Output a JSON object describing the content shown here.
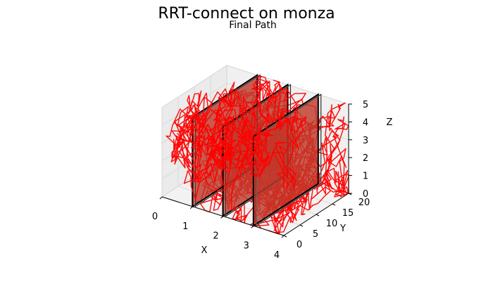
{
  "chart_data": {
    "type": "3d-line",
    "title": "RRT-connect on monza",
    "subtitle": "Final Path",
    "xlabel": "X",
    "ylabel": "Y",
    "zlabel": "Z",
    "xlim": [
      0,
      4
    ],
    "ylim": [
      0,
      20
    ],
    "zlim": [
      0,
      5
    ],
    "xticks": [
      "0",
      "1",
      "2",
      "3",
      "4"
    ],
    "yticks": [
      "0",
      "5",
      "10",
      "15",
      "20"
    ],
    "zticks": [
      "0",
      "1",
      "2",
      "3",
      "4",
      "5"
    ],
    "grid": true,
    "path_color": "#ff0000",
    "wall_color": "#c0392b",
    "walls": [
      {
        "x": 1,
        "y": [
          0,
          20
        ],
        "z": [
          0,
          5
        ]
      },
      {
        "x": 2,
        "y": [
          0,
          20
        ],
        "z": [
          0,
          5
        ]
      },
      {
        "x": 3,
        "y": [
          0,
          20
        ],
        "z": [
          0,
          5
        ]
      }
    ]
  }
}
